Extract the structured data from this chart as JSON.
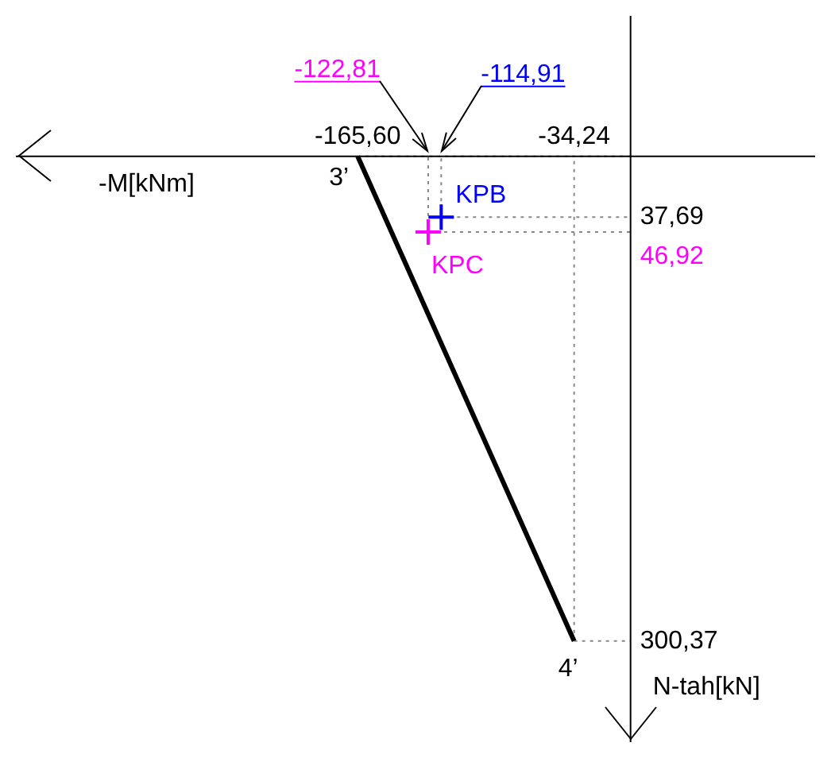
{
  "chart_data": {
    "type": "line",
    "xlabel": "-M[kNm]",
    "ylabel": "N-tah[kN]",
    "xlim": [
      -373,
      112
    ],
    "ylim": [
      363,
      -87
    ],
    "xticks": [
      {
        "value": -165.6,
        "label": "-165,60"
      },
      {
        "value": -34.24,
        "label": "-34,24"
      }
    ],
    "yticks": [
      {
        "value": 37.69,
        "label": "37,69"
      },
      {
        "value": 300.37,
        "label": "300,37"
      }
    ],
    "series": [
      {
        "type": "line",
        "color": "#000000",
        "x": [
          -165.6,
          -34.24
        ],
        "values": [
          0,
          300.37
        ],
        "marker": "none",
        "line_style": "solid"
      },
      {
        "type": "scatter",
        "name": "KPB",
        "color": "#0000ff",
        "x": [
          -114.91
        ],
        "values": [
          37.69
        ],
        "marker": "cross"
      },
      {
        "type": "scatter",
        "name": "KPC",
        "color": "#ff00ff",
        "x": [
          -122.81
        ],
        "values": [
          46.92
        ],
        "marker": "cross"
      }
    ],
    "annotations": [
      {
        "text": "3’",
        "x": -165.6,
        "y": 0
      },
      {
        "text": "4’",
        "x": -34.24,
        "y": 300.37
      },
      "-122,81",
      "-114,91",
      "46,92"
    ]
  }
}
